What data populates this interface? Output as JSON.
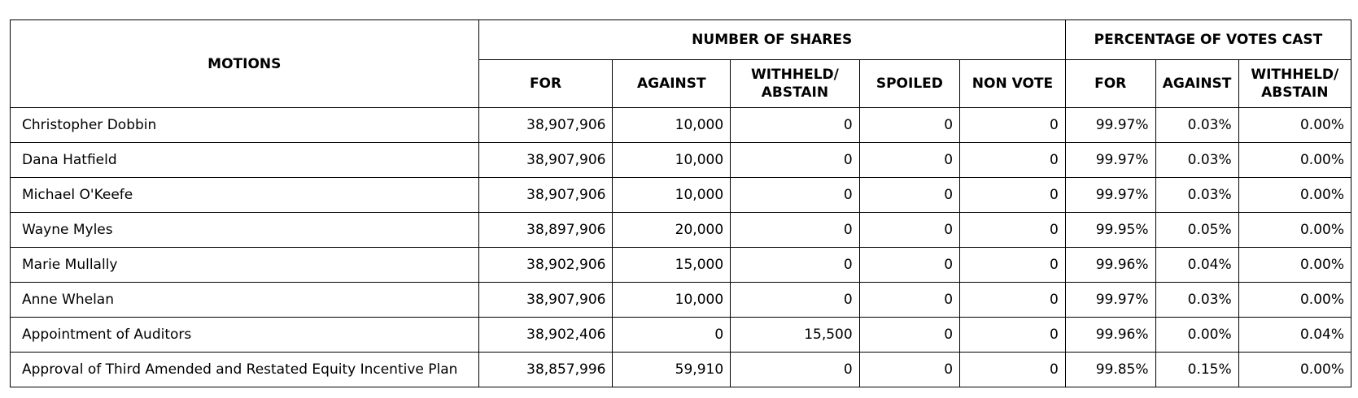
{
  "headers": {
    "motions": "MOTIONS",
    "number_of_shares": "NUMBER OF SHARES",
    "percentage_of_votes_cast": "PERCENTAGE OF VOTES CAST",
    "shares": {
      "for": "FOR",
      "against": "AGAINST",
      "withheld_line1": "WITHHELD/",
      "withheld_line2": "ABSTAIN",
      "spoiled": "SPOILED",
      "non_vote": "NON VOTE"
    },
    "pct": {
      "for": "FOR",
      "against": "AGAINST",
      "withheld_line1": "WITHHELD/",
      "withheld_line2": "ABSTAIN"
    }
  },
  "rows": [
    {
      "motion": "Christopher Dobbin",
      "for": "38,907,906",
      "against": "10,000",
      "withheld": "0",
      "spoiled": "0",
      "non_vote": "0",
      "pct_for": "99.97%",
      "pct_against": "0.03%",
      "pct_withheld": "0.00%"
    },
    {
      "motion": "Dana Hatfield",
      "for": "38,907,906",
      "against": "10,000",
      "withheld": "0",
      "spoiled": "0",
      "non_vote": "0",
      "pct_for": "99.97%",
      "pct_against": "0.03%",
      "pct_withheld": "0.00%"
    },
    {
      "motion": "Michael O'Keefe",
      "for": "38,907,906",
      "against": "10,000",
      "withheld": "0",
      "spoiled": "0",
      "non_vote": "0",
      "pct_for": "99.97%",
      "pct_against": "0.03%",
      "pct_withheld": "0.00%"
    },
    {
      "motion": "Wayne Myles",
      "for": "38,897,906",
      "against": "20,000",
      "withheld": "0",
      "spoiled": "0",
      "non_vote": "0",
      "pct_for": "99.95%",
      "pct_against": "0.05%",
      "pct_withheld": "0.00%"
    },
    {
      "motion": "Marie Mullally",
      "for": "38,902,906",
      "against": "15,000",
      "withheld": "0",
      "spoiled": "0",
      "non_vote": "0",
      "pct_for": "99.96%",
      "pct_against": "0.04%",
      "pct_withheld": "0.00%"
    },
    {
      "motion": "Anne Whelan",
      "for": "38,907,906",
      "against": "10,000",
      "withheld": "0",
      "spoiled": "0",
      "non_vote": "0",
      "pct_for": "99.97%",
      "pct_against": "0.03%",
      "pct_withheld": "0.00%"
    },
    {
      "motion": "Appointment of Auditors",
      "for": "38,902,406",
      "against": "0",
      "withheld": "15,500",
      "spoiled": "0",
      "non_vote": "0",
      "pct_for": "99.96%",
      "pct_against": "0.00%",
      "pct_withheld": "0.04%"
    },
    {
      "motion": "Approval of Third Amended and Restated Equity Incentive Plan",
      "for": "38,857,996",
      "against": "59,910",
      "withheld": "0",
      "spoiled": "0",
      "non_vote": "0",
      "pct_for": "99.85%",
      "pct_against": "0.15%",
      "pct_withheld": "0.00%"
    }
  ]
}
